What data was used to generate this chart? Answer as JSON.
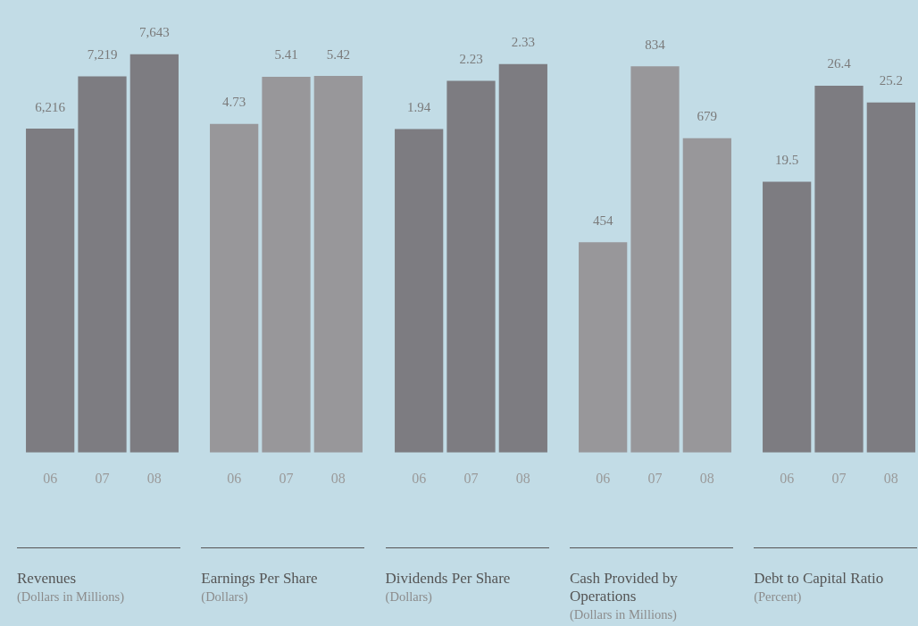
{
  "chart_data": [
    {
      "type": "bar",
      "title": "Revenues",
      "subtitle": "(Dollars in Millions)",
      "categories": [
        "06",
        "07",
        "08"
      ],
      "values": [
        6216,
        7219,
        7643
      ],
      "colors": [
        "#7d7c81",
        "#7d7c81",
        "#7d7c81"
      ],
      "data_labels": true,
      "value_labels": [
        "6,216",
        "7,219",
        "7,643"
      ]
    },
    {
      "type": "bar",
      "title": "Earnings Per Share",
      "subtitle": "(Dollars)",
      "categories": [
        "06",
        "07",
        "08"
      ],
      "values": [
        4.73,
        5.41,
        5.42
      ],
      "colors": [
        "#98979a",
        "#98979a",
        "#98979a"
      ],
      "data_labels": true
    },
    {
      "type": "bar",
      "title": "Dividends Per Share",
      "subtitle": "(Dollars)",
      "categories": [
        "06",
        "07",
        "08"
      ],
      "values": [
        1.94,
        2.23,
        2.33
      ],
      "colors": [
        "#7d7c81",
        "#7d7c81",
        "#7d7c81"
      ],
      "data_labels": true
    },
    {
      "type": "bar",
      "title": "Cash Provided by Operations",
      "subtitle": "(Dollars in Millions)",
      "categories": [
        "06",
        "07",
        "08"
      ],
      "values": [
        454,
        834,
        679
      ],
      "colors": [
        "#98979a",
        "#98979a",
        "#98979a"
      ],
      "data_labels": true
    },
    {
      "type": "bar",
      "title": "Debt to Capital Ratio",
      "subtitle": "(Percent)",
      "categories": [
        "06",
        "07",
        "08"
      ],
      "values": [
        19.5,
        26.4,
        25.2
      ],
      "colors": [
        "#7d7c81",
        "#7d7c81",
        "#7d7c81"
      ],
      "data_labels": true
    }
  ]
}
